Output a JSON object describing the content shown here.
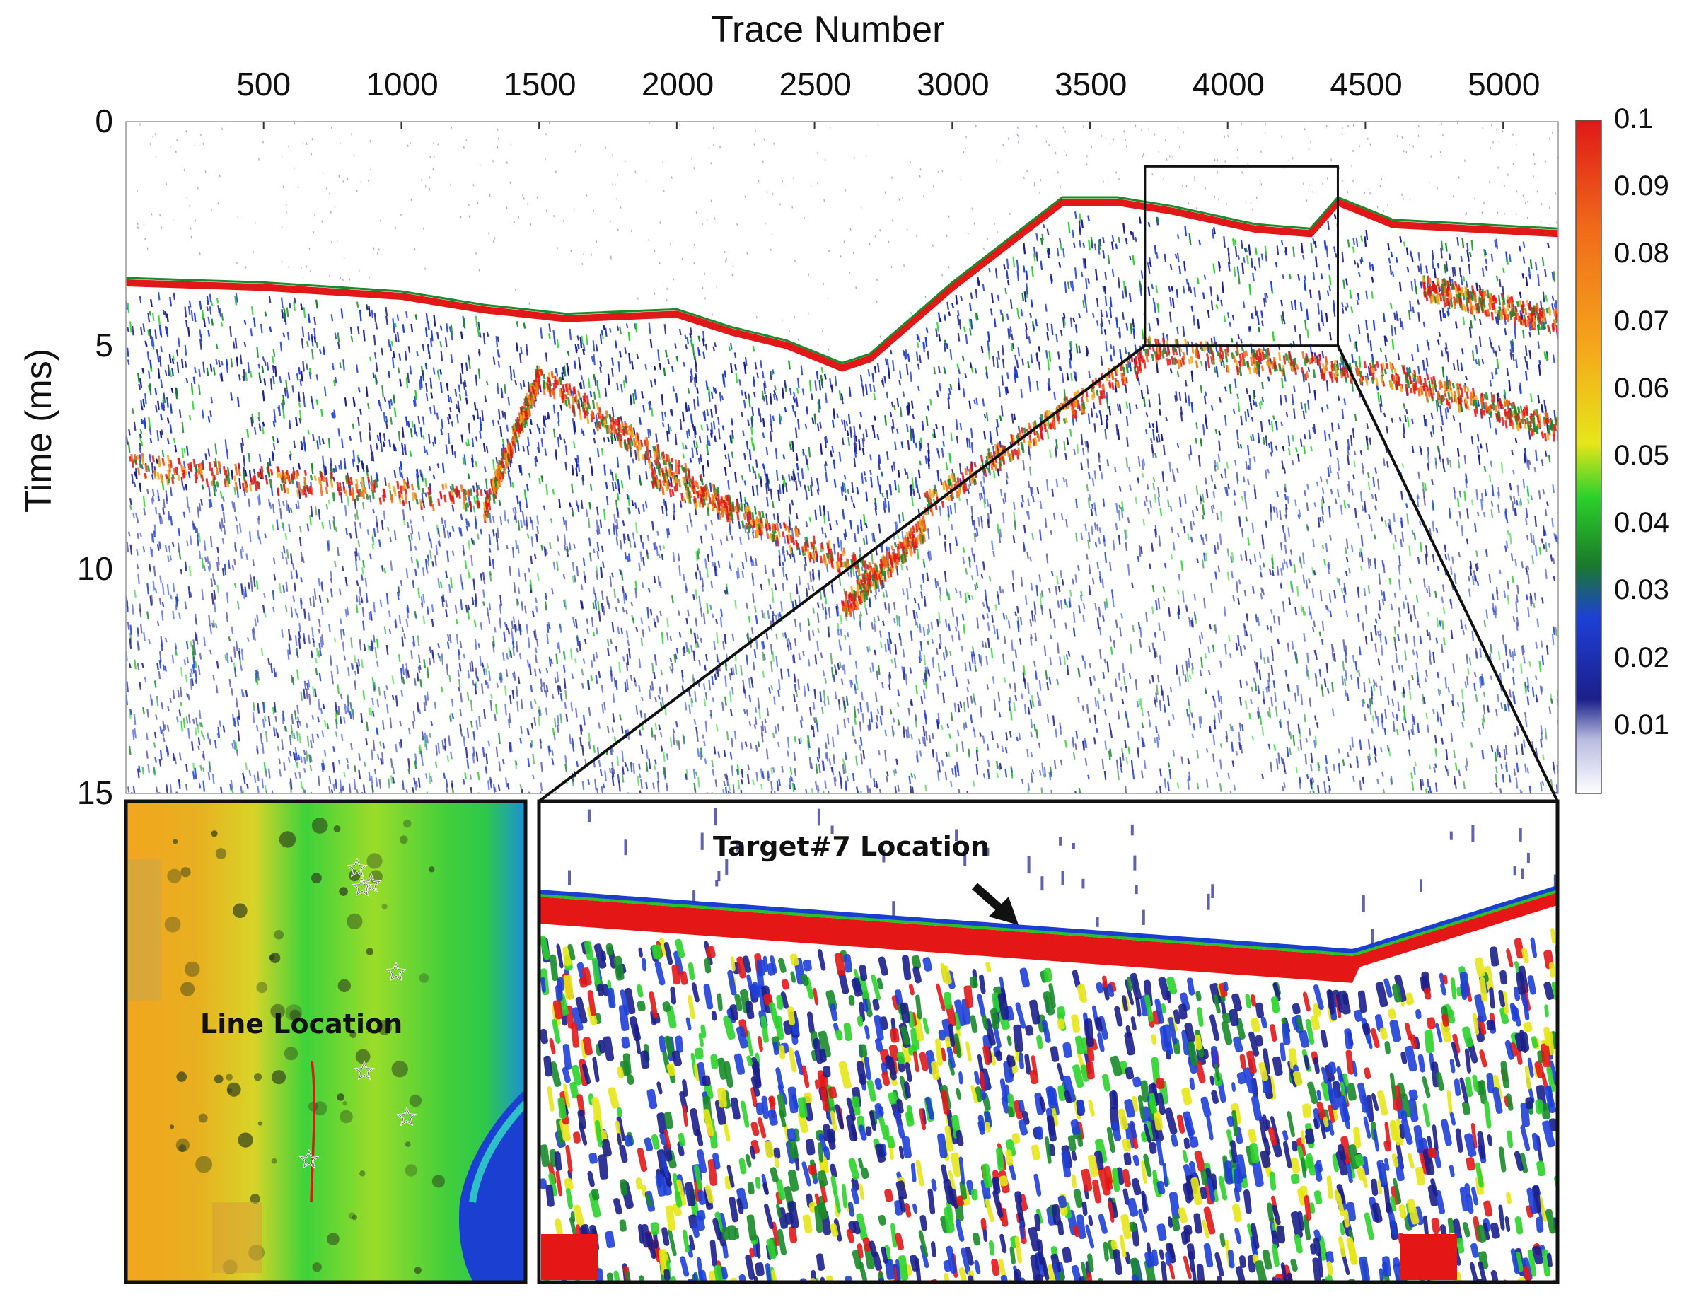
{
  "main_plot": {
    "x_axis_title": "Trace Number",
    "y_axis_title": "Time (ms)",
    "x_ticks": [
      "500",
      "1000",
      "1500",
      "2000",
      "2500",
      "3000",
      "3500",
      "4000",
      "4500",
      "5000"
    ],
    "x_tick_values": [
      500,
      1000,
      1500,
      2000,
      2500,
      3000,
      3500,
      4000,
      4500,
      5000
    ],
    "x_range": [
      0,
      5200
    ],
    "y_ticks": [
      "0",
      "5",
      "10",
      "15"
    ],
    "y_tick_values": [
      0,
      5,
      10,
      15
    ],
    "y_range": [
      0,
      15
    ],
    "seabed_profile": {
      "trace": [
        0,
        500,
        1000,
        1300,
        1600,
        2000,
        2200,
        2400,
        2600,
        2700,
        3000,
        3400,
        3600,
        3800,
        4100,
        4300,
        4400,
        4600,
        5200
      ],
      "time_ms": [
        3.6,
        3.7,
        3.9,
        4.2,
        4.4,
        4.3,
        4.7,
        5.0,
        5.5,
        5.3,
        3.7,
        1.8,
        1.8,
        2.0,
        2.4,
        2.5,
        1.8,
        2.3,
        2.5
      ]
    },
    "zoom_box": {
      "trace": [
        3700,
        4400
      ],
      "time_ms": [
        1.0,
        5.0
      ]
    }
  },
  "colorbar": {
    "ticks": [
      "0.1",
      "0.09",
      "0.08",
      "0.07",
      "0.06",
      "0.05",
      "0.04",
      "0.03",
      "0.02",
      "0.01"
    ],
    "tick_values": [
      0.1,
      0.09,
      0.08,
      0.07,
      0.06,
      0.05,
      0.04,
      0.03,
      0.02,
      0.01
    ],
    "range": [
      0,
      0.1
    ],
    "colors": [
      "#ffffff",
      "#1b1f8a",
      "#1e3fd6",
      "#1a8a2a",
      "#2bd12b",
      "#e6e61a",
      "#f5a81a",
      "#f06a1a",
      "#e01818"
    ]
  },
  "inset_map": {
    "label": "Line Location",
    "stars": 7
  },
  "inset_zoom": {
    "label": "Target#7 Location"
  }
}
